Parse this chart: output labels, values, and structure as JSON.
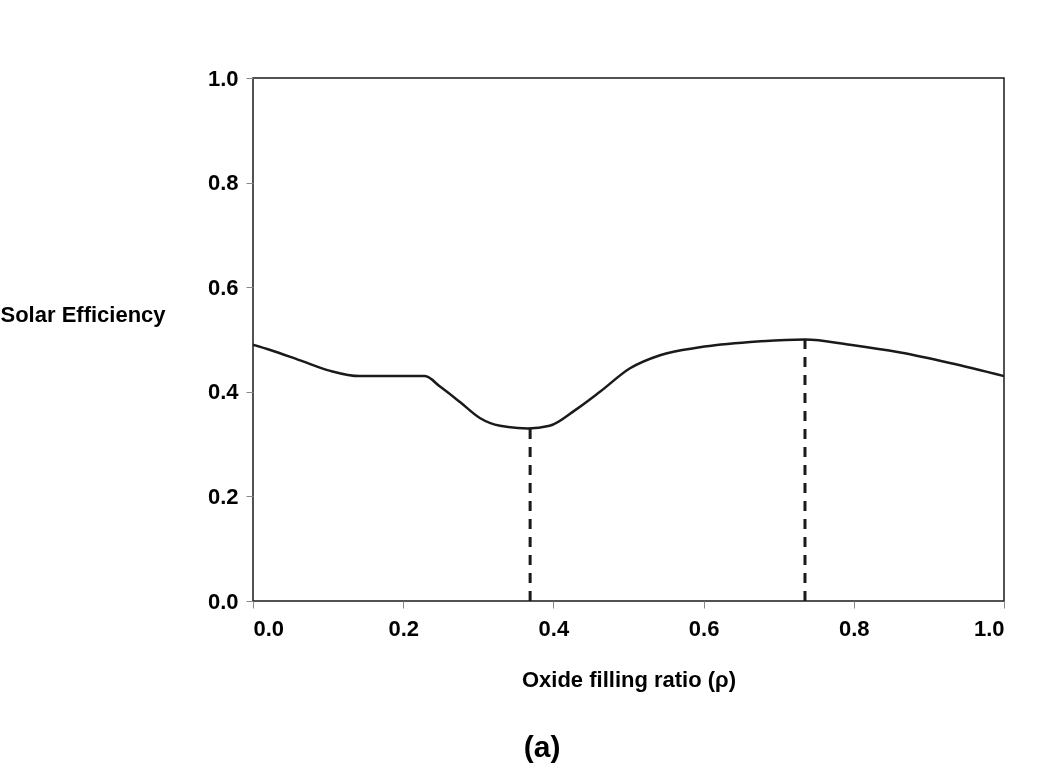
{
  "chart_data": {
    "type": "line",
    "xlabel": "Oxide filling ratio (ρ)",
    "ylabel": "Solar Efficiency",
    "xlim": [
      0,
      1
    ],
    "ylim": [
      0,
      1
    ],
    "xticks": [
      {
        "value": 0,
        "label": "0.0"
      },
      0.2,
      0.4,
      0.6,
      0.8,
      {
        "value": 1,
        "label": "1.0"
      }
    ],
    "yticks": [
      {
        "value": 0,
        "label": "0.0"
      },
      0.2,
      0.4,
      0.6,
      0.8,
      {
        "value": 1,
        "label": "1.0"
      }
    ],
    "grid": false,
    "marker": "none",
    "annotations": [
      "(a)"
    ],
    "series": [
      {
        "color": "#1a1a1a",
        "line_style": "solid",
        "x": [
          0,
          0.023,
          0.063,
          0.103,
          0.142,
          0.196,
          0.229,
          0.249,
          0.276,
          0.302,
          0.329,
          0.366,
          0.395,
          0.429,
          0.462,
          0.502,
          0.542,
          0.595,
          0.662,
          0.735,
          0.795,
          0.862,
          0.928,
          1.0
        ],
        "values": [
          0.49,
          0.48,
          0.46,
          0.44,
          0.43,
          0.43,
          0.43,
          0.41,
          0.38,
          0.35,
          0.335,
          0.33,
          0.335,
          0.365,
          0.4,
          0.445,
          0.47,
          0.485,
          0.495,
          0.5,
          0.49,
          0.475,
          0.455,
          0.43
        ]
      },
      {
        "color": "#1a1a1a",
        "line_style": "dashed",
        "x": [
          0.369,
          0.369
        ],
        "values": [
          0,
          0.33
        ]
      },
      {
        "color": "#1a1a1a",
        "line_style": "dashed",
        "x": [
          0.735,
          0.735
        ],
        "values": [
          0,
          0.5
        ]
      }
    ]
  }
}
